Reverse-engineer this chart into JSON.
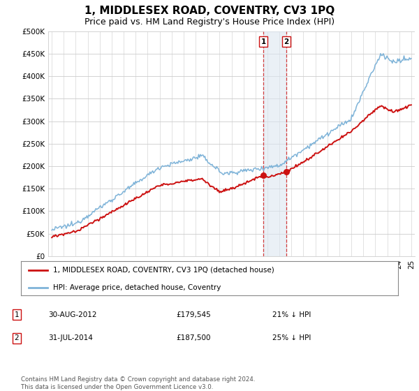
{
  "title": "1, MIDDLESEX ROAD, COVENTRY, CV3 1PQ",
  "subtitle": "Price paid vs. HM Land Registry's House Price Index (HPI)",
  "title_fontsize": 11,
  "subtitle_fontsize": 9,
  "ylabel_ticks": [
    "£0",
    "£50K",
    "£100K",
    "£150K",
    "£200K",
    "£250K",
    "£300K",
    "£350K",
    "£400K",
    "£450K",
    "£500K"
  ],
  "ytick_values": [
    0,
    50000,
    100000,
    150000,
    200000,
    250000,
    300000,
    350000,
    400000,
    450000,
    500000
  ],
  "hpi_color": "#7eb3d8",
  "price_color": "#cc1111",
  "sale1_date_num": 2012.66,
  "sale1_price": 179545,
  "sale1_date_str": "30-AUG-2012",
  "sale1_pct": "21% ↓ HPI",
  "sale2_date_num": 2014.58,
  "sale2_price": 187500,
  "sale2_date_str": "31-JUL-2014",
  "sale2_pct": "25% ↓ HPI",
  "shade_color": "#dce6f1",
  "shade_alpha": 0.6,
  "legend_label1": "1, MIDDLESEX ROAD, COVENTRY, CV3 1PQ (detached house)",
  "legend_label2": "HPI: Average price, detached house, Coventry",
  "footer": "Contains HM Land Registry data © Crown copyright and database right 2024.\nThis data is licensed under the Open Government Licence v3.0.",
  "bg_color": "#ffffff",
  "grid_color": "#cccccc",
  "xmin": 1994.7,
  "xmax": 2025.3,
  "ymin": 0,
  "ymax": 500000
}
